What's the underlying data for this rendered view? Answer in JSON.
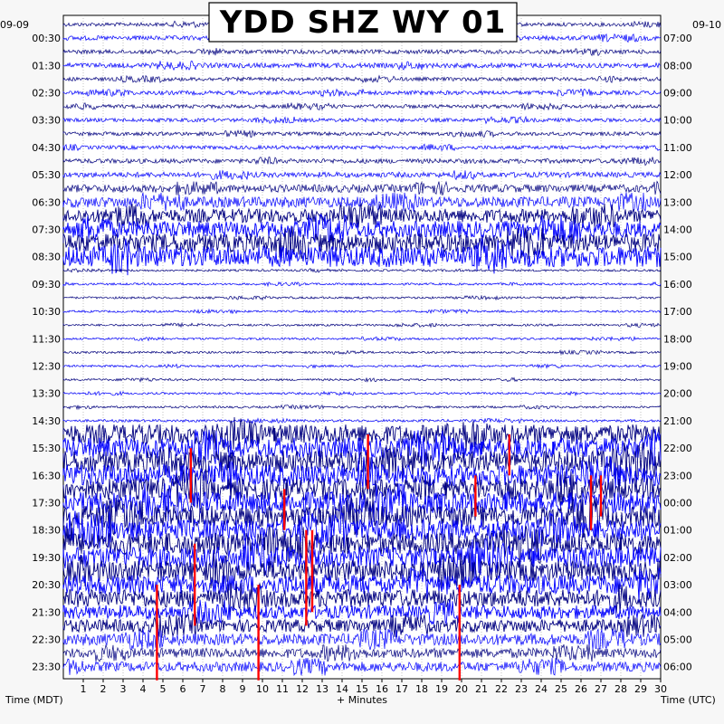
{
  "chart_data": {
    "type": "line",
    "title": "YDD SHZ WY 01",
    "xlabel": "+ Minutes",
    "ylabel_left": "Time (MDT)",
    "ylabel_right": "Time (UTC)",
    "left_date_label": "09-09",
    "right_date_label": "09-10",
    "x_ticks": [
      "1",
      "2",
      "3",
      "4",
      "5",
      "6",
      "7",
      "8",
      "9",
      "10",
      "11",
      "12",
      "13",
      "14",
      "15",
      "16",
      "17",
      "18",
      "19",
      "20",
      "21",
      "22",
      "23",
      "24",
      "25",
      "26",
      "27",
      "28",
      "29",
      "30"
    ],
    "xlim": [
      0,
      30
    ],
    "left_ticks": [
      "00:30",
      "01:30",
      "02:30",
      "03:30",
      "04:30",
      "05:30",
      "06:30",
      "07:30",
      "08:30",
      "09:30",
      "10:30",
      "11:30",
      "12:30",
      "13:30",
      "14:30",
      "15:30",
      "16:30",
      "17:30",
      "18:30",
      "19:30",
      "20:30",
      "21:30",
      "22:30",
      "23:30"
    ],
    "right_ticks": [
      "07:00",
      "08:00",
      "09:00",
      "10:00",
      "11:00",
      "12:00",
      "13:00",
      "14:00",
      "15:00",
      "16:00",
      "17:00",
      "18:00",
      "19:00",
      "20:00",
      "21:00",
      "22:00",
      "23:00",
      "00:00",
      "01:00",
      "02:00",
      "03:00",
      "04:00",
      "05:00",
      "06:00"
    ],
    "trace_count": 48,
    "trace_colors": [
      "#000080",
      "#0000ff"
    ],
    "clip_color": "#ff0000",
    "grid": true,
    "trace_activity": [
      0.1,
      0.14,
      0.12,
      0.16,
      0.1,
      0.12,
      0.1,
      0.1,
      0.1,
      0.1,
      0.14,
      0.18,
      0.3,
      0.45,
      0.6,
      0.75,
      0.85,
      0.95,
      0.02,
      0.02,
      0.02,
      0.02,
      0.02,
      0.02,
      0.02,
      0.02,
      0.02,
      0.02,
      0.02,
      0.04,
      0.9,
      0.95,
      1.0,
      1.0,
      1.0,
      1.0,
      1.0,
      1.0,
      1.0,
      1.0,
      0.95,
      0.9,
      0.8,
      0.6,
      0.55,
      0.5,
      0.4,
      0.4
    ],
    "clipped_events": [
      {
        "minute": 6.4,
        "trace_from": 31,
        "trace_to": 35
      },
      {
        "minute": 15.3,
        "trace_from": 30,
        "trace_to": 34
      },
      {
        "minute": 22.4,
        "trace_from": 30,
        "trace_to": 33
      },
      {
        "minute": 20.7,
        "trace_from": 33,
        "trace_to": 36
      },
      {
        "minute": 26.5,
        "trace_from": 33,
        "trace_to": 37
      },
      {
        "minute": 27.0,
        "trace_from": 33,
        "trace_to": 36
      },
      {
        "minute": 11.1,
        "trace_from": 34,
        "trace_to": 37
      },
      {
        "minute": 12.2,
        "trace_from": 37,
        "trace_to": 44
      },
      {
        "minute": 12.5,
        "trace_from": 37,
        "trace_to": 43
      },
      {
        "minute": 6.6,
        "trace_from": 38,
        "trace_to": 44
      },
      {
        "minute": 4.7,
        "trace_from": 41,
        "trace_to": 48
      },
      {
        "minute": 9.8,
        "trace_from": 41,
        "trace_to": 48
      },
      {
        "minute": 19.9,
        "trace_from": 41,
        "trace_to": 48
      }
    ],
    "quiet_blips": [
      {
        "minute": 8.3,
        "trace": 32
      },
      {
        "minute": 10.6,
        "trace": 30
      },
      {
        "minute": 21.0,
        "trace": 31
      },
      {
        "minute": 24.6,
        "trace": 31
      },
      {
        "minute": 7.6,
        "trace": 33
      },
      {
        "minute": 11.2,
        "trace": 34
      },
      {
        "minute": 19.2,
        "trace": 34
      },
      {
        "minute": 22.2,
        "trace": 35
      },
      {
        "minute": 25.4,
        "trace": 35
      },
      {
        "minute": 6.4,
        "trace": 36
      },
      {
        "minute": 12.9,
        "trace": 36
      },
      {
        "minute": 16.9,
        "trace": 37
      },
      {
        "minute": 21.6,
        "trace": 37
      },
      {
        "minute": 26.7,
        "trace": 37
      },
      {
        "minute": 5.2,
        "trace": 38
      },
      {
        "minute": 10.1,
        "trace": 38
      },
      {
        "minute": 14.3,
        "trace": 38
      },
      {
        "minute": 18.7,
        "trace": 39
      },
      {
        "minute": 23.6,
        "trace": 39
      },
      {
        "minute": 28.0,
        "trace": 38
      }
    ]
  }
}
